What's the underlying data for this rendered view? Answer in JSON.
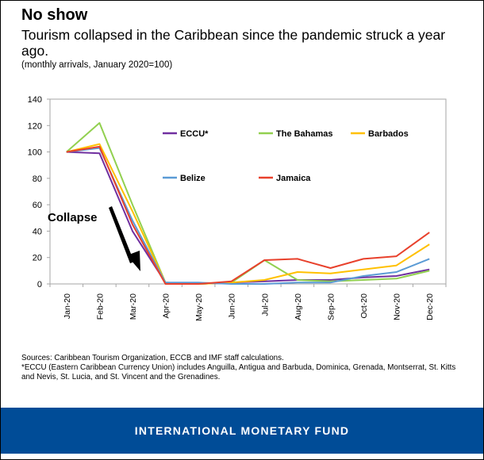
{
  "header": {
    "title": "No show",
    "subtitle": "Tourism collapsed in the Caribbean since the pandemic struck a year ago.",
    "units": "(monthly arrivals, January 2020=100)"
  },
  "annotation": {
    "label": "Collapse"
  },
  "notes": {
    "sources": "Sources: Caribbean Tourism Organization, ECCB and IMF staff calculations.",
    "footnote": "*ECCU (Eastern Caribbean Currency Union) includes Anguilla, Antigua and Barbuda, Dominica, Grenada, Montserrat, St. Kitts and Nevis, St. Lucia, and St. Vincent and the Grenadines."
  },
  "footer": {
    "text": "INTERNATIONAL MONETARY FUND",
    "color": "#004c97"
  },
  "chart_data": {
    "type": "line",
    "title": "",
    "xlabel": "",
    "ylabel": "",
    "ylim": [
      0,
      140
    ],
    "yticks": [
      0,
      20,
      40,
      60,
      80,
      100,
      120,
      140
    ],
    "grid": false,
    "legend_position": "top, inside plot area",
    "categories": [
      "Jan-20",
      "Feb-20",
      "Mar-20",
      "Apr-20",
      "May-20",
      "Jun-20",
      "Jul-20",
      "Aug-20",
      "Sep-20",
      "Oct-20",
      "Nov-20",
      "Dec-20"
    ],
    "series": [
      {
        "name": "ECCU*",
        "color": "#7030a0",
        "values": [
          100,
          99,
          40,
          1,
          0,
          1,
          2,
          3,
          3,
          5,
          6,
          11
        ]
      },
      {
        "name": "The Bahamas",
        "color": "#92d050",
        "values": [
          100,
          122,
          60,
          1,
          0,
          1,
          18,
          3,
          2,
          3,
          4,
          10
        ]
      },
      {
        "name": "Barbados",
        "color": "#ffc000",
        "values": [
          100,
          106,
          55,
          1,
          0,
          1,
          3,
          9,
          8,
          11,
          14,
          30
        ]
      },
      {
        "name": "Belize",
        "color": "#5b9bd5",
        "values": [
          100,
          103,
          48,
          1,
          1,
          0,
          0,
          1,
          1,
          6,
          9,
          19
        ]
      },
      {
        "name": "Jamaica",
        "color": "#e8412c",
        "values": [
          100,
          104,
          45,
          0,
          0,
          2,
          18,
          19,
          12,
          19,
          21,
          39
        ]
      }
    ]
  }
}
